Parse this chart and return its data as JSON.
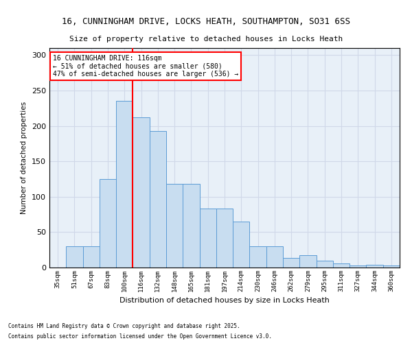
{
  "title1": "16, CUNNINGHAM DRIVE, LOCKS HEATH, SOUTHAMPTON, SO31 6SS",
  "title2": "Size of property relative to detached houses in Locks Heath",
  "xlabel": "Distribution of detached houses by size in Locks Heath",
  "ylabel": "Number of detached properties",
  "categories": [
    "35sqm",
    "51sqm",
    "67sqm",
    "83sqm",
    "100sqm",
    "116sqm",
    "132sqm",
    "148sqm",
    "165sqm",
    "181sqm",
    "197sqm",
    "214sqm",
    "230sqm",
    "246sqm",
    "262sqm",
    "279sqm",
    "295sqm",
    "311sqm",
    "327sqm",
    "344sqm",
    "360sqm"
  ],
  "bar_heights": [
    0,
    30,
    30,
    125,
    235,
    212,
    193,
    118,
    118,
    83,
    83,
    65,
    30,
    30,
    14,
    17,
    10,
    6,
    3,
    4,
    3
  ],
  "annotation_title": "16 CUNNINGHAM DRIVE: 116sqm",
  "annotation_line1": "← 51% of detached houses are smaller (580)",
  "annotation_line2": "47% of semi-detached houses are larger (536) →",
  "bar_color": "#c8ddf0",
  "bar_edge_color": "#5b9bd5",
  "line_color": "red",
  "annotation_box_color": "#ffffff",
  "annotation_box_edge": "red",
  "grid_color": "#d0d8e8",
  "bg_color": "#e8f0f8",
  "ylim": [
    0,
    310
  ],
  "footnote1": "Contains HM Land Registry data © Crown copyright and database right 2025.",
  "footnote2": "Contains public sector information licensed under the Open Government Licence v3.0."
}
